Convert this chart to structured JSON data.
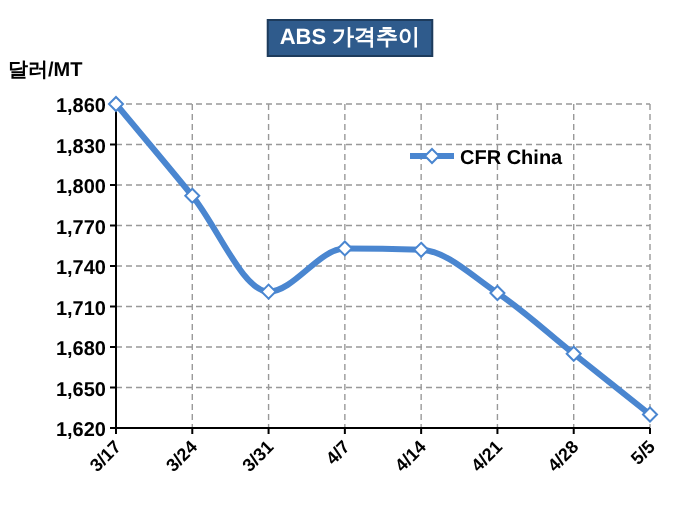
{
  "chart_data": {
    "type": "line",
    "title": "ABS 가격추이",
    "ylabel": "달러/MT",
    "categories": [
      "3/17",
      "3/24",
      "3/31",
      "4/7",
      "4/14",
      "4/21",
      "4/28",
      "5/5"
    ],
    "series": [
      {
        "name": "CFR China",
        "color": "#4a86d0",
        "values": [
          1860,
          1792,
          1721,
          1753,
          1752,
          1720,
          1675,
          1630
        ]
      }
    ],
    "ylim": [
      1620,
      1860
    ],
    "yticks": [
      {
        "value": 1620,
        "label": "1,620"
      },
      {
        "value": 1650,
        "label": "1,650"
      },
      {
        "value": 1680,
        "label": "1,680"
      },
      {
        "value": 1710,
        "label": "1,710"
      },
      {
        "value": 1740,
        "label": "1,740"
      },
      {
        "value": 1770,
        "label": "1,770"
      },
      {
        "value": 1800,
        "label": "1,800"
      },
      {
        "value": 1830,
        "label": "1,830"
      },
      {
        "value": 1860,
        "label": "1,860"
      }
    ],
    "grid": true,
    "legend": "top right",
    "marker": "diamond",
    "line_style": "solid"
  }
}
